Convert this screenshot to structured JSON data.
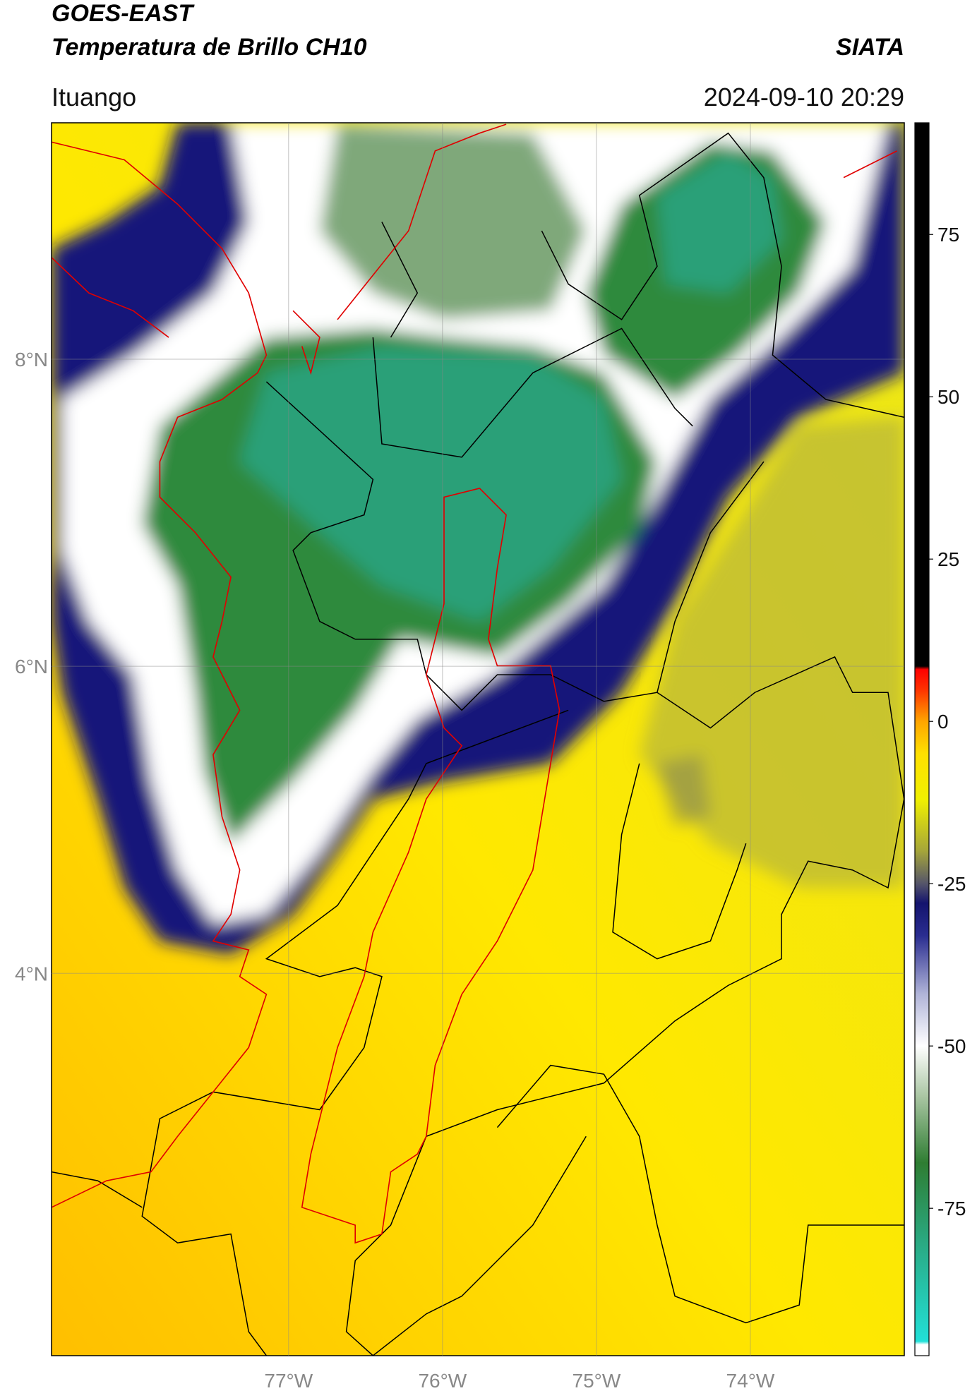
{
  "chart_data": {
    "type": "map",
    "title": "GOES-EAST",
    "subtitle": "Temperatura de Brillo CH10",
    "source": "SIATA",
    "location": "Ituango",
    "datetime": "2024-09-10 20:29",
    "xlim": [
      -78.54,
      -73.0
    ],
    "ylim": [
      1.51,
      9.54
    ],
    "xticks": [
      {
        "value": -77,
        "label": "77°W"
      },
      {
        "value": -76,
        "label": "76°W"
      },
      {
        "value": -75,
        "label": "75°W"
      },
      {
        "value": -74,
        "label": "74°W"
      }
    ],
    "yticks": [
      {
        "value": 4,
        "label": "4°N"
      },
      {
        "value": 6,
        "label": "6°N"
      },
      {
        "value": 8,
        "label": "8°N"
      }
    ],
    "grid": true,
    "colorbar": {
      "clim": [
        -97.7,
        92.2
      ],
      "ticks": [
        -75,
        -50,
        -25,
        0,
        25,
        50,
        75
      ],
      "colormap": [
        {
          "value": -97.7,
          "color": "#ffffff"
        },
        {
          "value": -96,
          "color": "#ffffff"
        },
        {
          "value": -95.5,
          "color": "#22e0d8"
        },
        {
          "value": -80,
          "color": "#2aa880"
        },
        {
          "value": -68,
          "color": "#2e7d32"
        },
        {
          "value": -58,
          "color": "#a7c4a0"
        },
        {
          "value": -50,
          "color": "#ffffff"
        },
        {
          "value": -42,
          "color": "#b0b4d8"
        },
        {
          "value": -33,
          "color": "#2a2d90"
        },
        {
          "value": -28,
          "color": "#14146e"
        },
        {
          "value": -25,
          "color": "#55556a"
        },
        {
          "value": -20,
          "color": "#a5a53a"
        },
        {
          "value": -12,
          "color": "#f0f000"
        },
        {
          "value": -5,
          "color": "#ffe000"
        },
        {
          "value": 0,
          "color": "#ffa500"
        },
        {
          "value": 5,
          "color": "#ff3000"
        },
        {
          "value": 8,
          "color": "#ff0000"
        },
        {
          "value": 8.5,
          "color": "#000000"
        },
        {
          "value": 92.2,
          "color": "#000000"
        }
      ]
    }
  }
}
